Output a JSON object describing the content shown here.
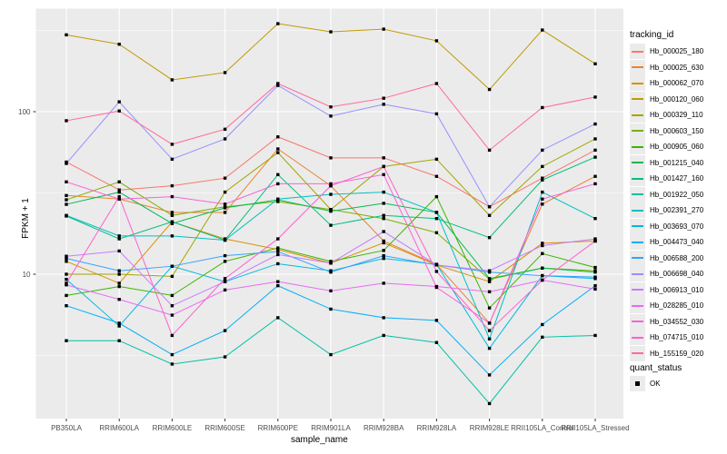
{
  "figure": {
    "panel_bg": "#EBEBEB",
    "grid_color": "#FFFFFF",
    "tick_color": "#333333",
    "tick_label_color": "#4D4D4D",
    "point_color": "#000000"
  },
  "axes": {
    "x": {
      "title": "sample_name"
    },
    "y": {
      "title": "FPKM + 1",
      "scale": "log10",
      "tick_labels": [
        "100",
        "10"
      ]
    }
  },
  "legend": {
    "tracking_title": "tracking_id",
    "quant_title": "quant_status",
    "quant_items": [
      {
        "label": "OK",
        "marker": "filled-square",
        "color": "#000000"
      }
    ]
  },
  "chart_data": {
    "type": "line",
    "title": "",
    "xlabel": "sample_name",
    "ylabel": "FPKM + 1",
    "y_scale": "log10",
    "ylim": [
      1.3,
      430
    ],
    "y_major_ticks": [
      10,
      100
    ],
    "y_minor_ticks": [
      3.1623,
      31.623,
      316.23
    ],
    "grid": true,
    "legend_position": "right",
    "x_categories": [
      "PB350LA",
      "RRIM600LA",
      "RRIM600LE",
      "RRIM600SE",
      "RRIM600PE",
      "RRIM901LA",
      "RRIM928BA",
      "RRIM928LA",
      "RRIM928LE",
      "RRII105LA_Control",
      "RRII105LA_Stressed"
    ],
    "point_marker": {
      "shape": "square",
      "color": "#000000",
      "meaning": "quant_status OK"
    },
    "series": [
      {
        "name": "Hb_000025_180",
        "color": "#F8766D",
        "values": [
          49,
          33,
          35,
          39,
          70,
          52,
          52,
          40,
          26,
          39,
          58
        ]
      },
      {
        "name": "Hb_000025_630",
        "color": "#EA8331",
        "values": [
          30.5,
          29,
          24,
          24,
          59,
          35,
          16,
          11.5,
          5,
          27,
          40
        ]
      },
      {
        "name": "Hb_000062_070",
        "color": "#D89000",
        "values": [
          12,
          8.8,
          21,
          16.5,
          14.2,
          11.7,
          15.6,
          11.4,
          9,
          15.5,
          16
        ]
      },
      {
        "name": "Hb_000120_060",
        "color": "#C09B00",
        "values": [
          297,
          260,
          157,
          174,
          348,
          310,
          322,
          273,
          137,
          318,
          197
        ]
      },
      {
        "name": "Hb_000329_110",
        "color": "#A3A500",
        "values": [
          10,
          10,
          9.7,
          32,
          56,
          25,
          46,
          51,
          23,
          46,
          68
        ]
      },
      {
        "name": "Hb_000603_150",
        "color": "#7CAE00",
        "values": [
          28.7,
          37,
          23,
          26,
          28,
          25,
          22,
          18,
          9.3,
          10.9,
          10.5
        ]
      },
      {
        "name": "Hb_000905_060",
        "color": "#39B600",
        "values": [
          7.4,
          8.4,
          7.4,
          12,
          14.5,
          12,
          14,
          30,
          6.2,
          13.4,
          11
        ]
      },
      {
        "name": "Hb_001215_040",
        "color": "#00BB4E",
        "values": [
          26.9,
          32,
          20.5,
          25.6,
          28.7,
          24.4,
          27.3,
          24,
          9.4,
          10.9,
          10.3
        ]
      },
      {
        "name": "Hb_001427_160",
        "color": "#00BF7D",
        "values": [
          22.8,
          16.5,
          21,
          16.2,
          41,
          20,
          23,
          22,
          16.8,
          38,
          52.5
        ]
      },
      {
        "name": "Hb_001922_050",
        "color": "#00C1A3",
        "values": [
          3.9,
          3.9,
          2.8,
          3.1,
          5.4,
          3.2,
          4.2,
          3.8,
          1.6,
          4.1,
          4.2
        ]
      },
      {
        "name": "Hb_002391_270",
        "color": "#00BFC4",
        "values": [
          23,
          17.2,
          17.2,
          16.2,
          29,
          31,
          32,
          24,
          4,
          32,
          22
        ]
      },
      {
        "name": "Hb_003693_070",
        "color": "#00BAE0",
        "values": [
          9.3,
          4.8,
          11.2,
          9,
          11.6,
          10.5,
          12.5,
          11.5,
          3.5,
          9.8,
          9.4
        ]
      },
      {
        "name": "Hb_004473_040",
        "color": "#00B0F6",
        "values": [
          6.4,
          5,
          3.2,
          4.5,
          8.5,
          6.1,
          5.4,
          5.2,
          2.4,
          4.9,
          8.5
        ]
      },
      {
        "name": "Hb_006588_200",
        "color": "#35A2FF",
        "values": [
          12.5,
          10.5,
          11.2,
          13,
          13.8,
          10.3,
          13,
          11.4,
          10.3,
          9.8,
          9.6
        ]
      },
      {
        "name": "Hb_006698_040",
        "color": "#9590FF",
        "values": [
          48,
          115,
          51,
          68,
          145,
          94,
          111,
          97,
          26,
          58,
          84
        ]
      },
      {
        "name": "Hb_006913_010",
        "color": "#C77CFF",
        "values": [
          12.9,
          13.9,
          6.4,
          9,
          13.2,
          11.7,
          18.3,
          11.4,
          10.5,
          15,
          16.5
        ]
      },
      {
        "name": "Hb_028285_010",
        "color": "#E76BF3",
        "values": [
          8.6,
          7,
          5.6,
          8,
          9,
          7.9,
          8.8,
          8.4,
          7.8,
          9.2,
          8.1
        ]
      },
      {
        "name": "Hb_034552_030",
        "color": "#FA62DB",
        "values": [
          37,
          29,
          30,
          27,
          36,
          36,
          41,
          8.3,
          5,
          29,
          36
        ]
      },
      {
        "name": "Hb_074715_010",
        "color": "#FF61CC",
        "values": [
          8.8,
          30,
          4.2,
          9.4,
          16.5,
          35,
          46,
          10.4,
          4.5,
          9.2,
          16
        ]
      },
      {
        "name": "Hb_155159_020",
        "color": "#FF6A98",
        "values": [
          88,
          101,
          63,
          78,
          149,
          107,
          121,
          149,
          58,
          106,
          123
        ]
      }
    ]
  }
}
